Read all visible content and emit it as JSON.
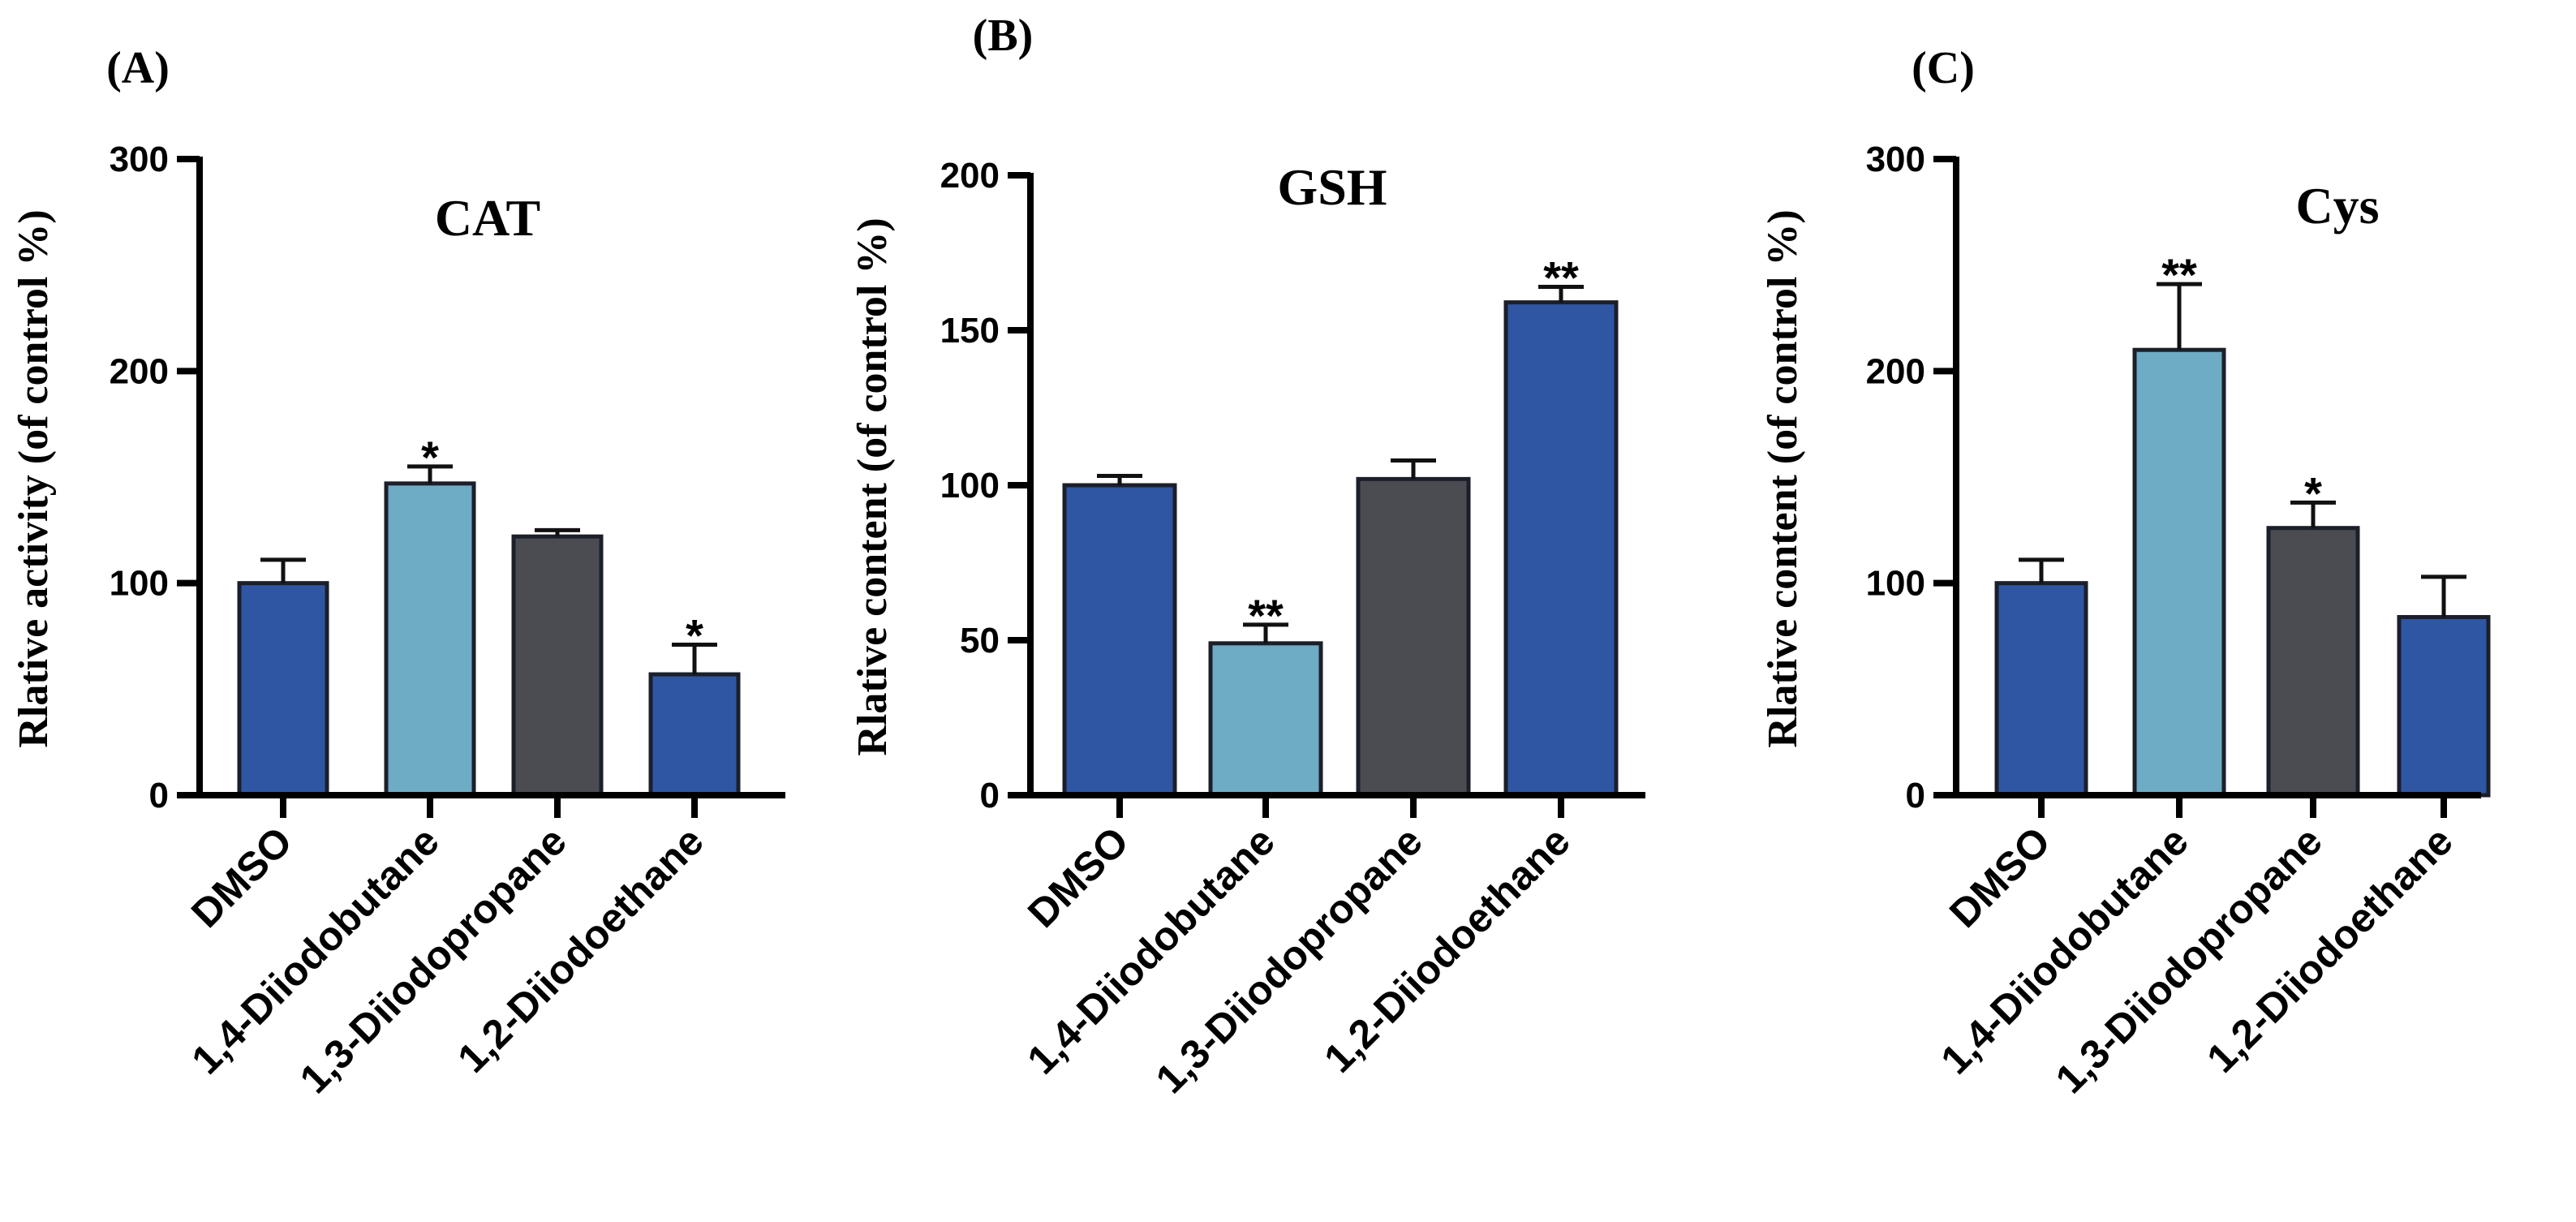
{
  "chart_data": [
    {
      "type": "bar",
      "panel": "(A)",
      "title": "CAT",
      "ylabel": "Rlative activity (of control %)",
      "xlabel": "",
      "ylim": [
        0,
        300
      ],
      "yticks": [
        "0",
        "100",
        "200",
        "300"
      ],
      "categories": [
        "DMSO",
        "1,4-Diiodobutane",
        "1,3-Diiodopropane",
        "1,2-Diiodoethane"
      ],
      "values": [
        100,
        147,
        122,
        57
      ],
      "errors": [
        11,
        8,
        3,
        14
      ],
      "significance": [
        "",
        "*",
        "",
        "*"
      ],
      "colors": [
        "#2f56a3",
        "#6eabc4",
        "#4a4c52",
        "#2f56a3"
      ]
    },
    {
      "type": "bar",
      "panel": "(B)",
      "title": "GSH",
      "ylabel": "Rlative content (of control %)",
      "xlabel": "",
      "ylim": [
        0,
        200
      ],
      "yticks": [
        "0",
        "50",
        "100",
        "150",
        "200"
      ],
      "categories": [
        "DMSO",
        "1,4-Diiodobutane",
        "1,3-Diiodopropane",
        "1,2-Diiodoethane"
      ],
      "values": [
        100,
        49,
        102,
        159
      ],
      "errors": [
        3,
        6,
        6,
        5
      ],
      "significance": [
        "",
        "**",
        "",
        "**"
      ],
      "colors": [
        "#2f56a3",
        "#6eabc4",
        "#4a4c52",
        "#2f56a3"
      ]
    },
    {
      "type": "bar",
      "panel": "(C)",
      "title": "Cys",
      "ylabel": "Rlative content (of control %)",
      "xlabel": "",
      "ylim": [
        0,
        300
      ],
      "yticks": [
        "0",
        "100",
        "200",
        "300"
      ],
      "categories": [
        "DMSO",
        "1,4-Diiodobutane",
        "1,3-Diiodopropane",
        "1,2-Diiodoethane"
      ],
      "values": [
        100,
        210,
        126,
        84
      ],
      "errors": [
        11,
        31,
        12,
        19
      ],
      "significance": [
        "",
        "**",
        "*",
        ""
      ],
      "colors": [
        "#2f56a3",
        "#6eabc4",
        "#4a4c52",
        "#2f56a3"
      ]
    }
  ]
}
